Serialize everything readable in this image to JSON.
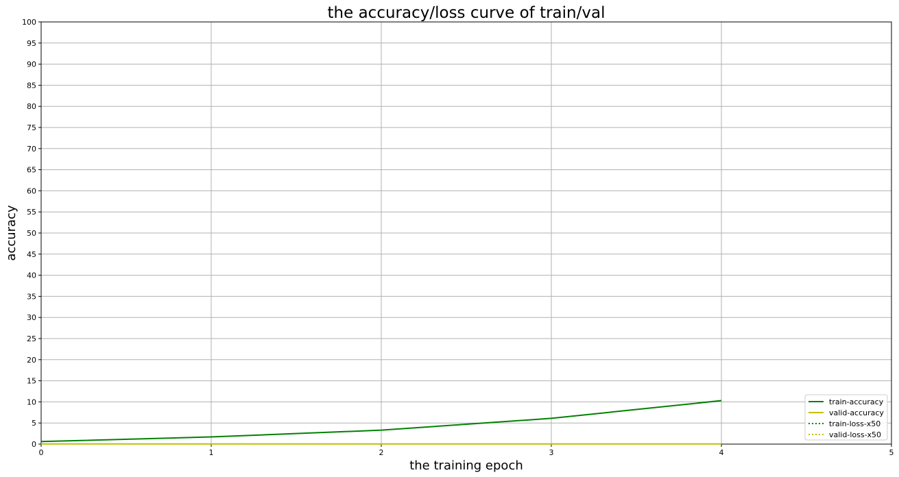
{
  "chart_data": {
    "type": "line",
    "title": "the accuracy/loss curve of train/val",
    "xlabel": "the training epoch",
    "ylabel": "accuracy",
    "xlim": [
      0,
      5
    ],
    "ylim": [
      0,
      100
    ],
    "xticks": [
      0,
      1,
      2,
      3,
      4,
      5
    ],
    "yticks": [
      0,
      5,
      10,
      15,
      20,
      25,
      30,
      35,
      40,
      45,
      50,
      55,
      60,
      65,
      70,
      75,
      80,
      85,
      90,
      95,
      100
    ],
    "grid": true,
    "legend_position": "lower-right",
    "series": [
      {
        "name": "train-accuracy",
        "color": "#008000",
        "style": "solid",
        "x": [
          0,
          1,
          2,
          3,
          4
        ],
        "y": [
          0.6,
          1.7,
          3.3,
          6.1,
          10.3
        ]
      },
      {
        "name": "valid-accuracy",
        "color": "#bfbf00",
        "style": "solid",
        "x": [
          0,
          1,
          2,
          3,
          4
        ],
        "y": [
          0.05,
          0.05,
          0.05,
          0.05,
          0.05
        ]
      },
      {
        "name": "train-loss-x50",
        "color": "#008000",
        "style": "dotted",
        "x": [],
        "y": []
      },
      {
        "name": "valid-loss-x50",
        "color": "#bfbf00",
        "style": "dotted",
        "x": [],
        "y": []
      }
    ]
  }
}
